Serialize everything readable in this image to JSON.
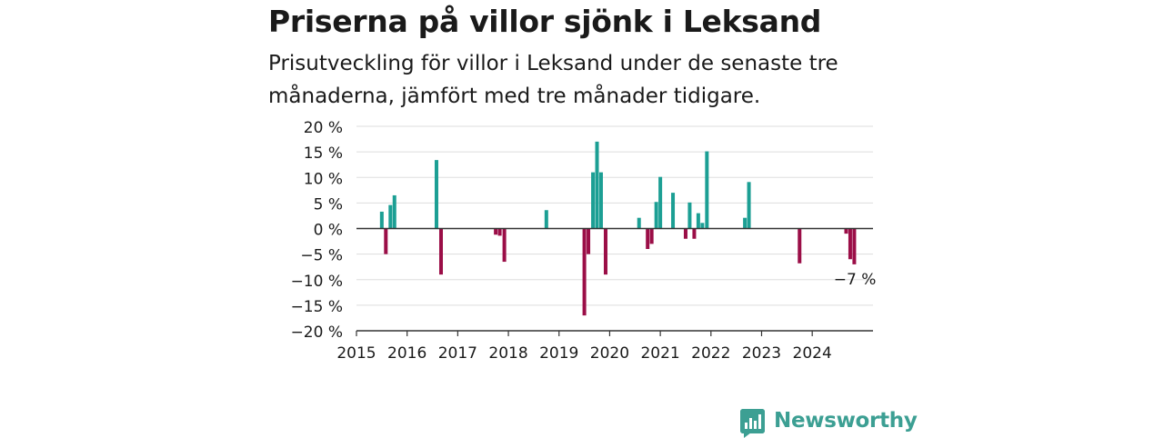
{
  "header": {
    "title": "Priserna på villor sjönk i Leksand",
    "subtitle": "Prisutveckling för villor i Leksand under de senaste tre månaderna, jämfört med tre månader tidigare."
  },
  "logo": {
    "name": "Newsworthy",
    "icon": "bar-chart-speech-bubble-icon"
  },
  "chart_data": {
    "type": "bar",
    "title": "Priserna på villor sjönk i Leksand",
    "xlabel": "",
    "ylabel": "",
    "ylim": [
      -20,
      20
    ],
    "xlim": [
      2015,
      2025.2
    ],
    "y_ticks": [
      20,
      15,
      10,
      5,
      0,
      -5,
      -10,
      -15,
      -20
    ],
    "y_tick_labels": [
      "20 %",
      "15 %",
      "10 %",
      "5 %",
      "0 %",
      "−5 %",
      "−10 %",
      "−15 %",
      "−20 %"
    ],
    "x_ticks": [
      2015,
      2016,
      2017,
      2018,
      2019,
      2020,
      2021,
      2022,
      2023,
      2024
    ],
    "x_tick_labels": [
      "2015",
      "2016",
      "2017",
      "2018",
      "2019",
      "2020",
      "2021",
      "2022",
      "2023",
      "2024"
    ],
    "grid": "horizontal",
    "colors": {
      "positive": "#1c9f94",
      "negative": "#9b0e47",
      "grid": "#dddddd",
      "axis": "#333333"
    },
    "annotation": {
      "text": "−7 %",
      "x": 2024.83,
      "y": -7
    },
    "x": [
      2015.5,
      2015.58,
      2015.67,
      2015.75,
      2016.58,
      2016.67,
      2017.75,
      2017.83,
      2017.92,
      2018.75,
      2019.5,
      2019.58,
      2019.67,
      2019.75,
      2019.83,
      2019.92,
      2020.58,
      2020.75,
      2020.83,
      2020.92,
      2021.0,
      2021.25,
      2021.5,
      2021.58,
      2021.67,
      2021.75,
      2021.83,
      2021.92,
      2022.67,
      2022.75,
      2023.75,
      2024.67,
      2024.75,
      2024.83
    ],
    "values": [
      3.3,
      -5,
      4.6,
      6.5,
      13.4,
      -9,
      -1.2,
      -1.4,
      -6.5,
      3.6,
      -17,
      -5,
      11,
      17,
      11,
      -9,
      2.1,
      -4,
      -3,
      5.2,
      10.1,
      7,
      -2,
      5.1,
      -2,
      3,
      1.1,
      15.1,
      2.1,
      9.1,
      -6.8,
      -1,
      -6,
      -7
    ]
  }
}
